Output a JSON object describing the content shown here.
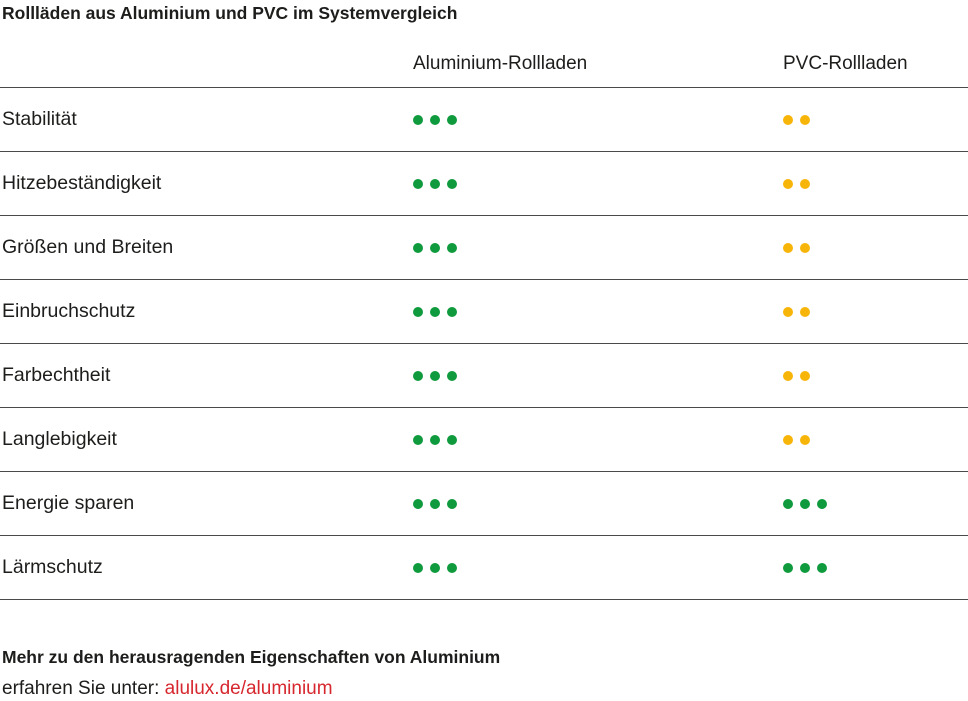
{
  "page": {
    "title": "Rollläden aus Aluminium und PVC im Systemvergleich"
  },
  "table": {
    "column_headers": [
      "Aluminium-Rollladen",
      "PVC-Rollladen"
    ]
  },
  "footer": {
    "heading": "Mehr zu den herausragenden Eigenschaften von Aluminium",
    "prefix": "erfahren Sie unter: ",
    "link_text": "alulux.de/aluminium"
  },
  "colors": {
    "rating_green": "#0f9b3d",
    "rating_yellow": "#f7b50a",
    "link_red": "#d7272e",
    "line_gray": "#4a4a49",
    "text_black": "#1d1d1b"
  },
  "chart_data": {
    "type": "table",
    "title": "Rollläden aus Aluminium und PVC im Systemvergleich",
    "categories": [
      "Stabilität",
      "Hitzebeständigkeit",
      "Größen und Breiten",
      "Einbruchschutz",
      "Farbechtheit",
      "Langlebigkeit",
      "Energie sparen",
      "Lärmschutz"
    ],
    "series": [
      {
        "name": "Aluminium-Rollladen",
        "values": [
          3,
          3,
          3,
          3,
          3,
          3,
          3,
          3
        ],
        "dot_colors": [
          "rating_green",
          "rating_green",
          "rating_green",
          "rating_green",
          "rating_green",
          "rating_green",
          "rating_green",
          "rating_green"
        ]
      },
      {
        "name": "PVC-Rollladen",
        "values": [
          2,
          2,
          2,
          2,
          2,
          2,
          3,
          3
        ],
        "dot_colors": [
          "rating_yellow",
          "rating_yellow",
          "rating_yellow",
          "rating_yellow",
          "rating_yellow",
          "rating_yellow",
          "rating_green",
          "rating_green"
        ]
      }
    ],
    "max_rating": 3,
    "legend_position": "none",
    "grid": "horizontal-separators"
  }
}
